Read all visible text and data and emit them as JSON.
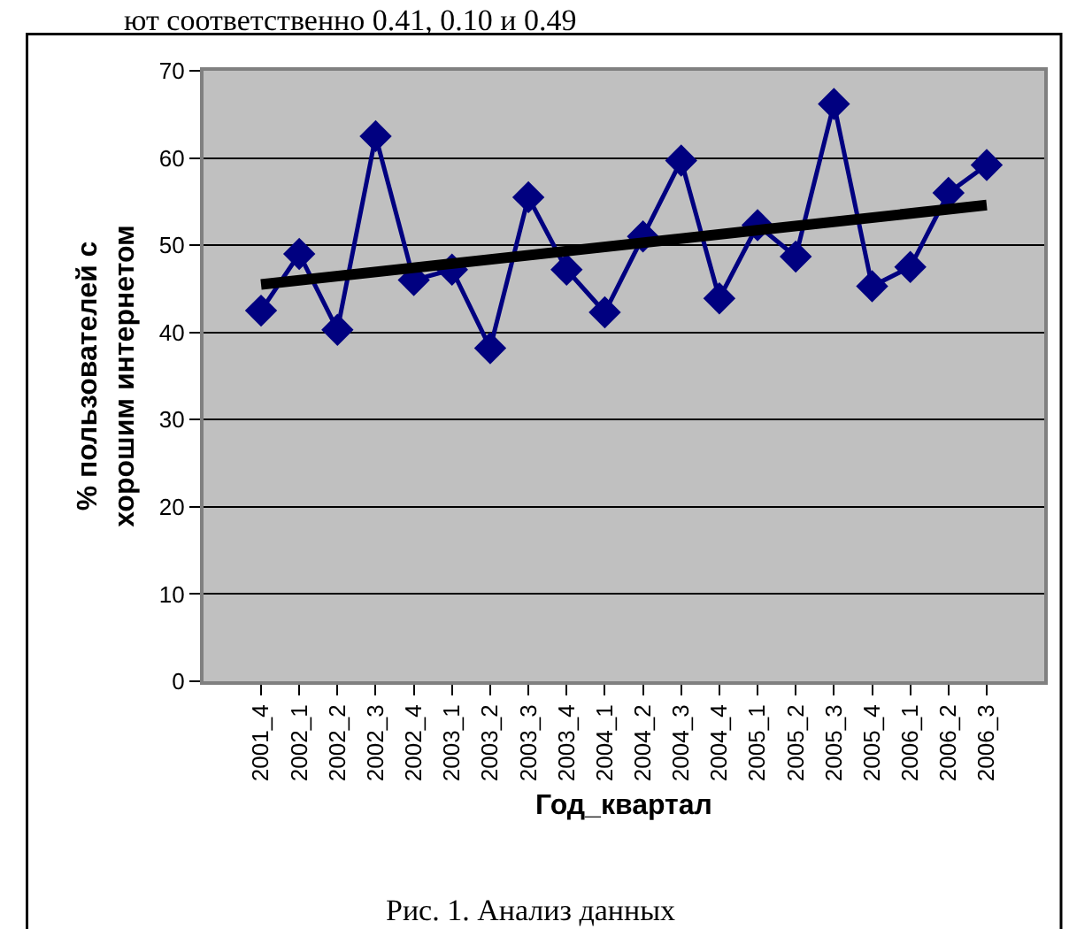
{
  "chart_data": {
    "type": "line",
    "categories": [
      "2001_4",
      "2002_1",
      "2002_2",
      "2002_3",
      "2002_4",
      "2003_1",
      "2003_2",
      "2003_3",
      "2003_4",
      "2004_1",
      "2004_2",
      "2004_3",
      "2004_4",
      "2005_1",
      "2005_2",
      "2005_3",
      "2005_4",
      "2006_1",
      "2006_2",
      "2006_3"
    ],
    "series": [
      {
        "color": "#000080",
        "marker": "diamond",
        "values": [
          42.5,
          49,
          40.3,
          62.5,
          46,
          47.2,
          38.2,
          55.5,
          47.2,
          42.3,
          51,
          59.7,
          43.9,
          52.3,
          48.7,
          66.2,
          45.3,
          47.5,
          56,
          59.2
        ]
      },
      {
        "type": "line",
        "color": "#000000",
        "marker": "none",
        "x": [
          "2001_4",
          "2006_3"
        ],
        "values": [
          45.5,
          54.6
        ]
      }
    ],
    "xlabel": "Год_квартал",
    "ylabel": "% пользователей с\nхорошим интернетом",
    "ylim": [
      0,
      70
    ],
    "yticks": [
      0,
      10,
      20,
      30,
      40,
      50,
      60,
      70
    ],
    "grid": "y",
    "annotations": [
      "ют соответственно 0.41, 0.10 и 0.49",
      "Рис. 1. Анализ данных"
    ]
  }
}
